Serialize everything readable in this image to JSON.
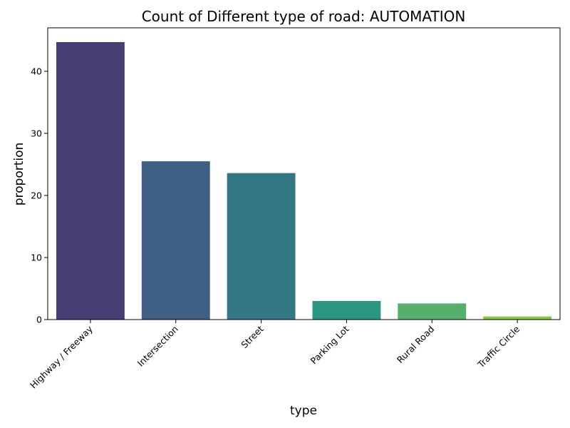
{
  "chart_data": {
    "type": "bar",
    "title": "Count of Different type of road: AUTOMATION",
    "xlabel": "type",
    "ylabel": "proportion",
    "categories": [
      "Highway / Freeway",
      "Intersection",
      "Street",
      "Parking Lot",
      "Rural Road",
      "Traffic Circle"
    ],
    "values": [
      44.7,
      25.5,
      23.6,
      3.0,
      2.6,
      0.5
    ],
    "colors": [
      "#483D74",
      "#405F84",
      "#337783",
      "#2B9580",
      "#55B06B",
      "#8CC63F"
    ],
    "ylim": [
      0,
      47
    ],
    "yticks": [
      0,
      10,
      20,
      30,
      40
    ],
    "grid": false,
    "legend": "none"
  }
}
